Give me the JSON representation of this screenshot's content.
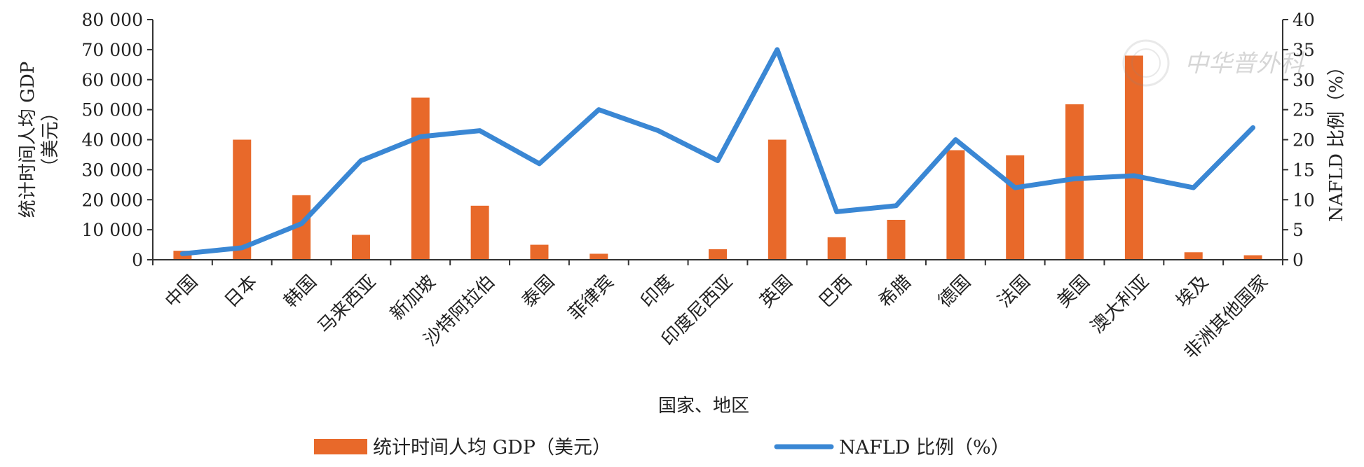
{
  "chart_data": {
    "type": "bar",
    "categories": [
      "中国",
      "日本",
      "韩国",
      "马来西亚",
      "新加坡",
      "沙特阿拉伯",
      "泰国",
      "菲律宾",
      "印度",
      "印度尼西亚",
      "英国",
      "巴西",
      "希腊",
      "德国",
      "法国",
      "美国",
      "澳大利亚",
      "埃及",
      "非洲其他国家"
    ],
    "series": [
      {
        "name": "统计时间人均 GDP（美元）",
        "type": "bar",
        "axis": "left",
        "color": "#E8692A",
        "values": [
          3000,
          40000,
          21500,
          8300,
          54000,
          18000,
          5000,
          2000,
          null,
          3500,
          40000,
          7500,
          13300,
          36500,
          34800,
          51800,
          68000,
          2500,
          1500
        ]
      },
      {
        "name": "NAFLD 比例（%）",
        "type": "line",
        "axis": "right",
        "color": "#3A87D4",
        "values": [
          1,
          2,
          6,
          16.5,
          20.5,
          21.5,
          16,
          25,
          21.5,
          16.5,
          35,
          8,
          9,
          20,
          12,
          13.5,
          14,
          12,
          22
        ]
      }
    ],
    "xlabel": "国家、地区",
    "ylabel": "统计时间人均 GDP",
    "ylabel_unit": "（美元）",
    "y2label": "NAFLD 比例（%）",
    "ylim": [
      0,
      80000
    ],
    "y2lim": [
      0,
      40
    ],
    "yticks": [
      "0",
      "10 000",
      "20 000",
      "30 000",
      "40 000",
      "50 000",
      "60 000",
      "70 000",
      "80 000"
    ],
    "y2ticks": [
      "0",
      "5",
      "10",
      "15",
      "20",
      "25",
      "30",
      "35",
      "40"
    ],
    "grid": false,
    "legend_position": "bottom"
  },
  "watermark": "中华普外科"
}
